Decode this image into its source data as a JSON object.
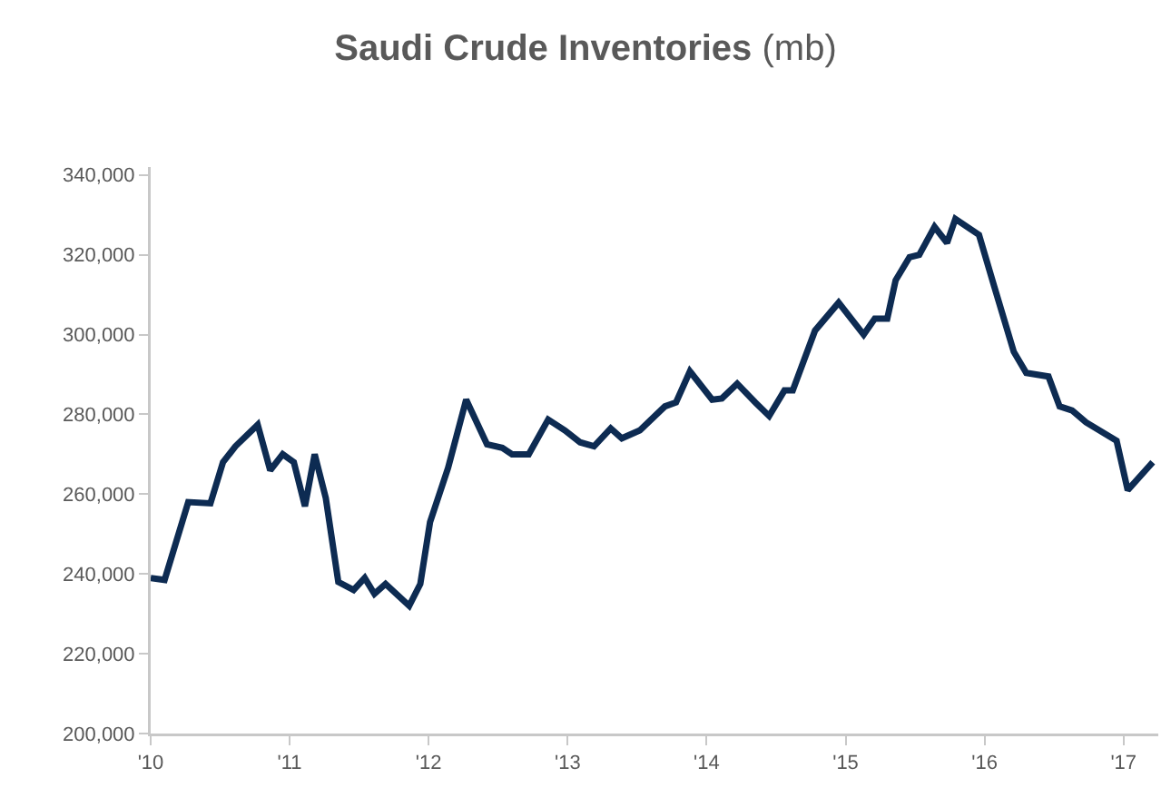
{
  "chart_data": {
    "type": "line",
    "title": "Saudi Crude Inventories (mb)",
    "x": [
      2010.0,
      2010.1,
      2010.27,
      2010.43,
      2010.52,
      2010.61,
      2010.77,
      2010.86,
      2010.95,
      2011.03,
      2011.11,
      2011.18,
      2011.26,
      2011.35,
      2011.46,
      2011.54,
      2011.61,
      2011.69,
      2011.86,
      2011.94,
      2012.01,
      2012.14,
      2012.27,
      2012.42,
      2012.53,
      2012.6,
      2012.72,
      2012.86,
      2012.98,
      2013.09,
      2013.19,
      2013.31,
      2013.39,
      2013.52,
      2013.7,
      2013.78,
      2013.88,
      2014.04,
      2014.11,
      2014.22,
      2014.35,
      2014.45,
      2014.56,
      2014.62,
      2014.78,
      2014.95,
      2015.13,
      2015.21,
      2015.3,
      2015.36,
      2015.46,
      2015.53,
      2015.64,
      2015.73,
      2015.79,
      2015.96,
      2016.07,
      2016.21,
      2016.3,
      2016.46,
      2016.54,
      2016.63,
      2016.73,
      2016.95,
      2017.03,
      2017.21
    ],
    "series": [
      {
        "color": "#0d2b52",
        "values": [
          239000,
          238500,
          258000,
          257700,
          268000,
          272000,
          277400,
          266000,
          270000,
          268000,
          257000,
          270000,
          259000,
          238000,
          236000,
          239000,
          235000,
          237500,
          232000,
          237500,
          253000,
          266600,
          283700,
          272500,
          271600,
          270000,
          270000,
          278700,
          276000,
          273000,
          272000,
          276500,
          274000,
          276000,
          282000,
          283000,
          290800,
          283700,
          284000,
          287700,
          283000,
          279600,
          286000,
          286000,
          301000,
          308000,
          300000,
          304000,
          304000,
          313600,
          319400,
          320000,
          327000,
          323000,
          329000,
          325000,
          312000,
          295700,
          290400,
          289500,
          282000,
          281000,
          278000,
          273400,
          261000,
          268000
        ]
      }
    ],
    "xlim": [
      2010,
      2017.25
    ],
    "xticks": [
      {
        "value": 2010,
        "label": "'10"
      },
      {
        "value": 2011,
        "label": "'11"
      },
      {
        "value": 2012,
        "label": "'12"
      },
      {
        "value": 2013,
        "label": "'13"
      },
      {
        "value": 2014,
        "label": "'14"
      },
      {
        "value": 2015,
        "label": "'15"
      },
      {
        "value": 2016,
        "label": "'16"
      },
      {
        "value": 2017,
        "label": "'17"
      }
    ],
    "ylim": [
      200000,
      342000
    ],
    "yticks": [
      {
        "value": 200000,
        "label": "200,000"
      },
      {
        "value": 220000,
        "label": "220,000"
      },
      {
        "value": 240000,
        "label": "240,000"
      },
      {
        "value": 260000,
        "label": "260,000"
      },
      {
        "value": 280000,
        "label": "280,000"
      },
      {
        "value": 300000,
        "label": "300,000"
      },
      {
        "value": 320000,
        "label": "320,000"
      },
      {
        "value": 340000,
        "label": "340,000"
      }
    ],
    "grid": false,
    "marker": "none",
    "line_style": "solid"
  }
}
